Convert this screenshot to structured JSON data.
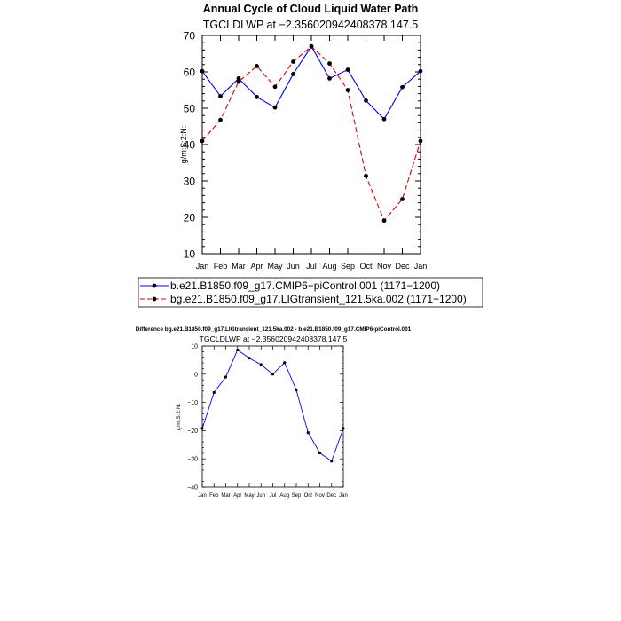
{
  "colors": {
    "control": "#0000ff",
    "transient": "#e00000",
    "difference": "#0000ff",
    "marker": "#000000"
  },
  "chart_data": [
    {
      "type": "line",
      "title": "Annual Cycle of Cloud Liquid Water Path",
      "subtitle": "TGCLDLWP at −2.356020942408378,147.5",
      "xlabel": "",
      "ylabel": "g/m:S:2:N:",
      "ylim": [
        10,
        70
      ],
      "yticks": [
        10,
        20,
        30,
        40,
        50,
        60,
        70
      ],
      "categories": [
        "Jan",
        "Feb",
        "Mar",
        "Apr",
        "May",
        "Jun",
        "Jul",
        "Aug",
        "Sep",
        "Oct",
        "Nov",
        "Dec",
        "Jan"
      ],
      "grid": false,
      "legend": "bottom",
      "series": [
        {
          "name": "b.e21.B1850.f09_g17.CMIP6−piControl.001 (1171−1200)",
          "style": "solid",
          "color": "#0000ff",
          "values": [
            60.2,
            53.3,
            58.2,
            53.1,
            50.2,
            59.4,
            67.0,
            58.2,
            60.6,
            52.1,
            47.0,
            55.8,
            60.2
          ]
        },
        {
          "name": "bg.e21.B1850.f09_g17.LIGtransient_121.5ka.002 (1171−1200)",
          "style": "dashed",
          "color": "#e00000",
          "values": [
            41.0,
            46.8,
            57.3,
            61.6,
            55.9,
            62.8,
            67.0,
            62.3,
            55.0,
            31.4,
            19.1,
            25.0,
            41.0
          ]
        }
      ]
    },
    {
      "type": "line",
      "title": "Difference bg.e21.B1850.f09_g17.LIGtransient_121.5ka.002 - b.e21.B1850.f09_g17.CMIP6-piControl.001",
      "subtitle": "TGCLDLWP at −2.356020942408378,147.5",
      "xlabel": "",
      "ylabel": "g/m:S:2:N:",
      "ylim": [
        -40,
        10
      ],
      "yticks": [
        -40,
        -30,
        -20,
        -10,
        0,
        10
      ],
      "categories": [
        "Jan",
        "Feb",
        "Mar",
        "Apr",
        "May",
        "Jun",
        "Jul",
        "Aug",
        "Sep",
        "Oct",
        "Nov",
        "Dec",
        "Jan"
      ],
      "grid": false,
      "series": [
        {
          "style": "solid",
          "color": "#0000ff",
          "values": [
            -19.2,
            -6.5,
            -1.0,
            8.6,
            5.7,
            3.4,
            0.0,
            4.1,
            -5.6,
            -20.7,
            -27.9,
            -30.8,
            -19.2
          ]
        }
      ]
    }
  ]
}
